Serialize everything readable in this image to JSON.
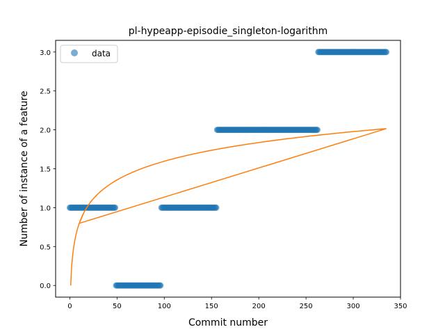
{
  "chart_data": {
    "type": "scatter",
    "title": "pl-hypeapp-episodie_singleton-logarithm",
    "xlabel": "Commit number",
    "ylabel": "Number of instance of a feature",
    "xlim": [
      -15,
      350
    ],
    "ylim": [
      -0.15,
      3.15
    ],
    "xticks": [
      0,
      50,
      100,
      150,
      200,
      250,
      300,
      350
    ],
    "yticks": [
      0.0,
      0.5,
      1.0,
      1.5,
      2.0,
      2.5,
      3.0
    ],
    "xtick_labels": [
      "0",
      "50",
      "100",
      "150",
      "200",
      "250",
      "300",
      "350"
    ],
    "ytick_labels": [
      "0.0",
      "0.5",
      "1.0",
      "1.5",
      "2.0",
      "2.5",
      "3.0"
    ],
    "legend": {
      "position": "upper-left",
      "label": "data"
    },
    "colors": {
      "data": "#1f77b4",
      "fit": "#ff7f0e"
    },
    "series": [
      {
        "name": "data",
        "kind": "scatter",
        "segments": [
          {
            "x_start": 0,
            "x_end": 48,
            "y": 1
          },
          {
            "x_start": 49,
            "x_end": 96,
            "y": 0
          },
          {
            "x_start": 97,
            "x_end": 155,
            "y": 1
          },
          {
            "x_start": 156,
            "x_end": 262,
            "y": 2
          },
          {
            "x_start": 263,
            "x_end": 335,
            "y": 3
          }
        ]
      },
      {
        "kind": "line",
        "function": "logarithmic",
        "a": 0.3467,
        "x_start": 1,
        "x_end": 335
      }
    ]
  }
}
